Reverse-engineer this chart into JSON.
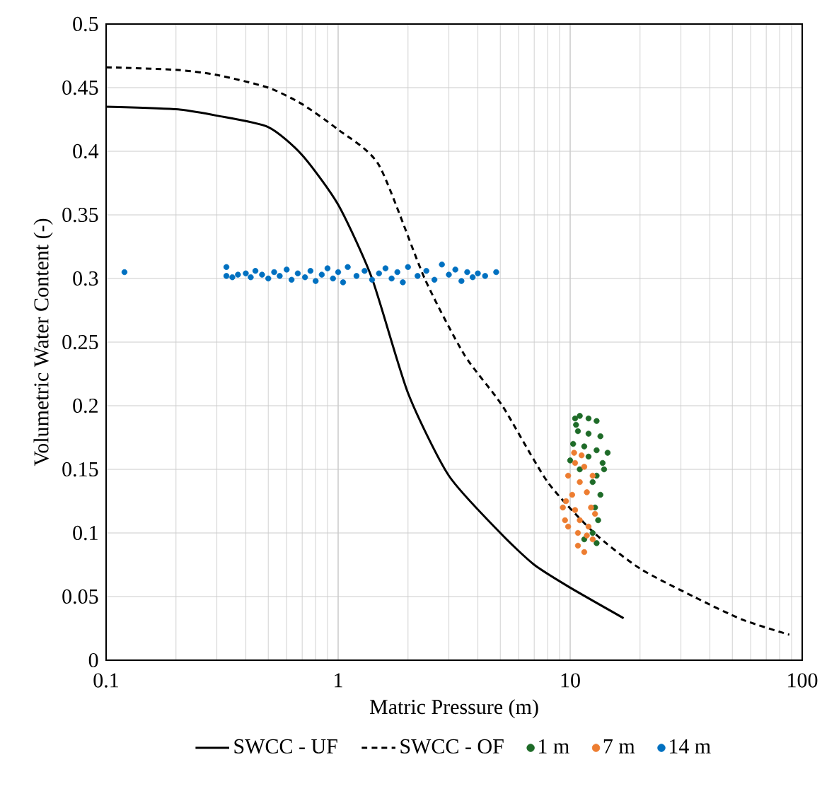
{
  "chart_data": {
    "type": "line",
    "xlabel": "Matric Pressure (m)",
    "ylabel": "Volumetric Water Content (-)",
    "log": "x",
    "xlim": [
      0.1,
      100
    ],
    "xticks": [
      0.1,
      1,
      10,
      100
    ],
    "ylim": [
      0,
      0.5
    ],
    "yticks": [
      0,
      0.05,
      0.1,
      0.15,
      0.2,
      0.25,
      0.3,
      0.35,
      0.4,
      0.45,
      0.5
    ],
    "grid": true,
    "legend": "bottom",
    "series": [
      {
        "name": "SWCC - UF",
        "line_style": "solid",
        "color": "#000000",
        "x": [
          0.1,
          0.2,
          0.3,
          0.5,
          0.7,
          1,
          1.4,
          2,
          3,
          5,
          7,
          10,
          17
        ],
        "values": [
          0.435,
          0.433,
          0.428,
          0.419,
          0.397,
          0.358,
          0.3,
          0.21,
          0.145,
          0.1,
          0.075,
          0.057,
          0.033
        ]
      },
      {
        "name": "SWCC - OF",
        "line_style": "dashed",
        "color": "#000000",
        "x": [
          0.1,
          0.2,
          0.3,
          0.5,
          0.7,
          1,
          1.5,
          2.36,
          3.5,
          5.1,
          8,
          12.7,
          20,
          34,
          55,
          88
        ],
        "values": [
          0.466,
          0.464,
          0.46,
          0.45,
          0.437,
          0.417,
          0.389,
          0.3,
          0.24,
          0.2,
          0.14,
          0.1,
          0.072,
          0.05,
          0.032,
          0.02
        ]
      },
      {
        "name": "1 m",
        "type": "scatter",
        "marker": "circle",
        "color": "#1e6b28",
        "x": [
          10.5,
          11,
          12,
          13,
          10.8,
          12,
          13.5,
          10.3,
          11.5,
          13,
          14.5,
          10,
          12,
          13.8,
          11,
          13,
          12.5,
          13.5,
          12.8,
          13.2,
          12.5,
          13,
          11.5,
          14,
          10.6
        ],
        "values": [
          0.19,
          0.192,
          0.19,
          0.188,
          0.18,
          0.178,
          0.176,
          0.17,
          0.168,
          0.165,
          0.163,
          0.157,
          0.16,
          0.155,
          0.15,
          0.145,
          0.14,
          0.13,
          0.12,
          0.11,
          0.1,
          0.092,
          0.095,
          0.15,
          0.185
        ]
      },
      {
        "name": "7 m",
        "type": "scatter",
        "marker": "circle",
        "color": "#ed7d31",
        "x": [
          10.4,
          11.2,
          10.5,
          11.5,
          9.8,
          11,
          12.5,
          10.2,
          11.8,
          9.6,
          12.3,
          10.5,
          11,
          9.3,
          12.8,
          9.8,
          10.8,
          11.8,
          12.5,
          11.5,
          10.8,
          9.5,
          12
        ],
        "values": [
          0.163,
          0.161,
          0.155,
          0.152,
          0.145,
          0.14,
          0.145,
          0.13,
          0.132,
          0.125,
          0.12,
          0.118,
          0.11,
          0.12,
          0.115,
          0.105,
          0.1,
          0.098,
          0.095,
          0.085,
          0.09,
          0.11,
          0.105
        ]
      },
      {
        "name": "14 m",
        "type": "scatter",
        "marker": "circle",
        "color": "#0070c0",
        "x": [
          0.12,
          0.33,
          0.33,
          0.35,
          0.37,
          0.4,
          0.42,
          0.44,
          0.47,
          0.5,
          0.53,
          0.56,
          0.6,
          0.63,
          0.67,
          0.72,
          0.76,
          0.8,
          0.85,
          0.9,
          0.95,
          1.0,
          1.05,
          1.1,
          1.2,
          1.3,
          1.4,
          1.5,
          1.6,
          1.7,
          1.8,
          1.9,
          2.0,
          2.2,
          2.4,
          2.6,
          2.8,
          3.0,
          3.2,
          3.4,
          3.6,
          3.8,
          4.0,
          4.3,
          4.8
        ],
        "values": [
          0.305,
          0.309,
          0.302,
          0.301,
          0.303,
          0.304,
          0.301,
          0.306,
          0.303,
          0.3,
          0.305,
          0.302,
          0.307,
          0.299,
          0.304,
          0.301,
          0.306,
          0.298,
          0.303,
          0.308,
          0.3,
          0.305,
          0.297,
          0.309,
          0.302,
          0.306,
          0.299,
          0.304,
          0.308,
          0.3,
          0.305,
          0.297,
          0.309,
          0.302,
          0.306,
          0.299,
          0.311,
          0.303,
          0.307,
          0.298,
          0.305,
          0.301,
          0.304,
          0.302,
          0.305
        ]
      }
    ]
  }
}
